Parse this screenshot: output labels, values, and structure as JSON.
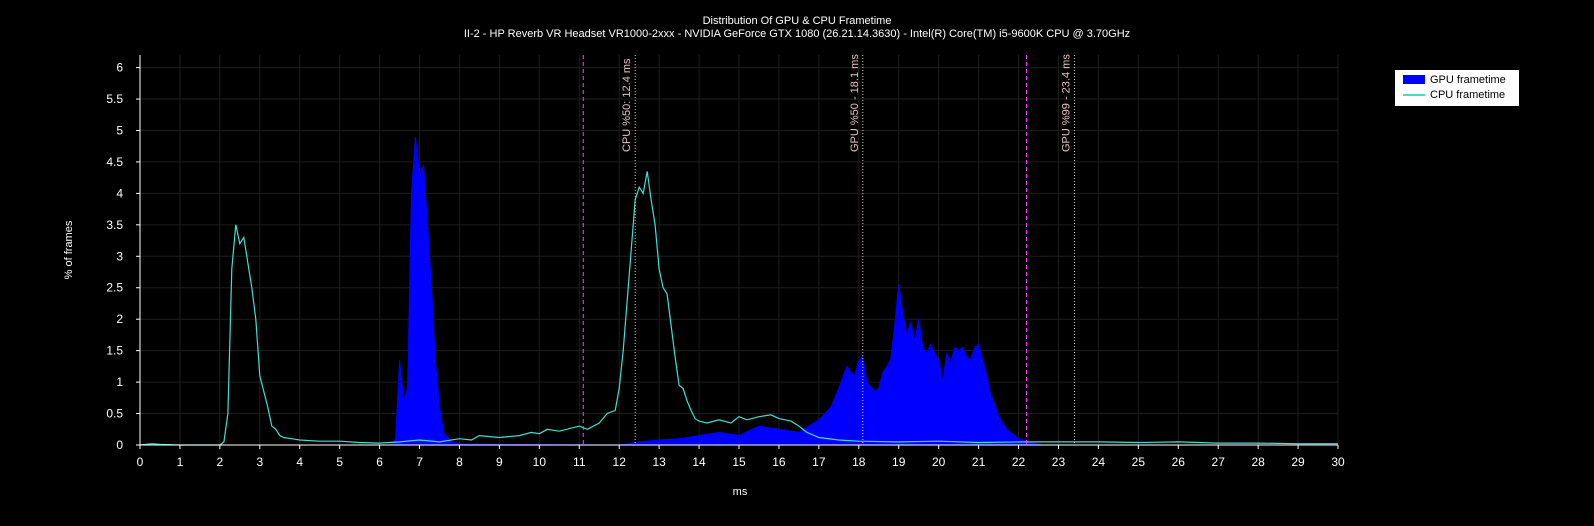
{
  "chart_data": {
    "type": "area",
    "title": "Distribution Of GPU & CPU Frametime",
    "subtitle": "II-2 - HP Reverb VR Headset VR1000-2xxx - NVIDIA GeForce GTX 1080 (26.21.14.3630) - Intel(R) Core(TM) i5-9600K CPU @ 3.70GHz",
    "xlabel": "ms",
    "ylabel": "% of frames",
    "xlim": [
      0,
      30
    ],
    "ylim": [
      0,
      6.2
    ],
    "xticks": [
      "0",
      "1",
      "2",
      "3",
      "4",
      "5",
      "6",
      "7",
      "8",
      "9",
      "10",
      "11",
      "12",
      "13",
      "14",
      "15",
      "16",
      "17",
      "18",
      "19",
      "20",
      "21",
      "22",
      "23",
      "24",
      "25",
      "26",
      "27",
      "28",
      "29",
      "30"
    ],
    "yticks": [
      "0",
      "0.5",
      "1",
      "1.5",
      "2",
      "2.5",
      "3",
      "3.5",
      "4",
      "4.5",
      "5",
      "5.5",
      "6"
    ],
    "grid": true,
    "legend_position": "top-right",
    "series": [
      {
        "name": "GPU frametime",
        "kind": "area",
        "color": "#0000ff",
        "points": [
          [
            0,
            0
          ],
          [
            6.3,
            0
          ],
          [
            6.4,
            0.1
          ],
          [
            6.5,
            1.35
          ],
          [
            6.6,
            0.7
          ],
          [
            6.7,
            0.9
          ],
          [
            6.8,
            4.0
          ],
          [
            6.9,
            4.9
          ],
          [
            7.0,
            4.3
          ],
          [
            7.1,
            4.45
          ],
          [
            7.2,
            3.5
          ],
          [
            7.3,
            2.5
          ],
          [
            7.4,
            1.3
          ],
          [
            7.5,
            0.6
          ],
          [
            7.6,
            0.2
          ],
          [
            7.8,
            0.05
          ],
          [
            8.0,
            0.02
          ],
          [
            9.0,
            0.01
          ],
          [
            12.0,
            0.0
          ],
          [
            12.5,
            0.05
          ],
          [
            13.0,
            0.08
          ],
          [
            13.5,
            0.1
          ],
          [
            14.0,
            0.15
          ],
          [
            14.5,
            0.2
          ],
          [
            15.0,
            0.15
          ],
          [
            15.5,
            0.3
          ],
          [
            16.0,
            0.25
          ],
          [
            16.5,
            0.2
          ],
          [
            17.0,
            0.4
          ],
          [
            17.3,
            0.6
          ],
          [
            17.5,
            0.9
          ],
          [
            17.7,
            1.25
          ],
          [
            17.8,
            1.15
          ],
          [
            17.9,
            1.1
          ],
          [
            18.0,
            1.35
          ],
          [
            18.1,
            1.4
          ],
          [
            18.2,
            1.0
          ],
          [
            18.4,
            0.85
          ],
          [
            18.5,
            0.9
          ],
          [
            18.6,
            1.15
          ],
          [
            18.7,
            1.25
          ],
          [
            18.8,
            1.35
          ],
          [
            18.9,
            1.9
          ],
          [
            19.0,
            2.55
          ],
          [
            19.1,
            2.1
          ],
          [
            19.2,
            1.75
          ],
          [
            19.3,
            1.95
          ],
          [
            19.4,
            1.65
          ],
          [
            19.5,
            2.0
          ],
          [
            19.6,
            1.55
          ],
          [
            19.7,
            1.45
          ],
          [
            19.8,
            1.6
          ],
          [
            19.9,
            1.45
          ],
          [
            20.0,
            1.35
          ],
          [
            20.1,
            1.0
          ],
          [
            20.2,
            1.45
          ],
          [
            20.3,
            1.3
          ],
          [
            20.4,
            1.55
          ],
          [
            20.5,
            1.5
          ],
          [
            20.6,
            1.55
          ],
          [
            20.7,
            1.4
          ],
          [
            20.8,
            1.35
          ],
          [
            20.9,
            1.55
          ],
          [
            21.0,
            1.6
          ],
          [
            21.1,
            1.35
          ],
          [
            21.2,
            1.1
          ],
          [
            21.3,
            0.8
          ],
          [
            21.4,
            0.65
          ],
          [
            21.5,
            0.45
          ],
          [
            21.7,
            0.25
          ],
          [
            22.0,
            0.1
          ],
          [
            22.3,
            0.04
          ],
          [
            22.6,
            0.0
          ],
          [
            30,
            0
          ]
        ]
      },
      {
        "name": "CPU frametime",
        "kind": "line",
        "color": "#40e0d0",
        "points": [
          [
            0,
            0
          ],
          [
            0.3,
            0.02
          ],
          [
            0.5,
            0.01
          ],
          [
            1.0,
            0.0
          ],
          [
            2.0,
            0.0
          ],
          [
            2.1,
            0.05
          ],
          [
            2.2,
            0.5
          ],
          [
            2.3,
            2.8
          ],
          [
            2.4,
            3.5
          ],
          [
            2.5,
            3.2
          ],
          [
            2.6,
            3.3
          ],
          [
            2.7,
            2.9
          ],
          [
            2.8,
            2.5
          ],
          [
            2.9,
            2.0
          ],
          [
            3.0,
            1.1
          ],
          [
            3.1,
            0.85
          ],
          [
            3.2,
            0.6
          ],
          [
            3.3,
            0.3
          ],
          [
            3.4,
            0.25
          ],
          [
            3.5,
            0.15
          ],
          [
            3.6,
            0.12
          ],
          [
            3.8,
            0.1
          ],
          [
            4.0,
            0.08
          ],
          [
            4.5,
            0.06
          ],
          [
            5.0,
            0.06
          ],
          [
            5.5,
            0.04
          ],
          [
            6.0,
            0.03
          ],
          [
            6.5,
            0.05
          ],
          [
            7.0,
            0.08
          ],
          [
            7.5,
            0.05
          ],
          [
            8.0,
            0.1
          ],
          [
            8.3,
            0.08
          ],
          [
            8.5,
            0.15
          ],
          [
            9.0,
            0.12
          ],
          [
            9.5,
            0.15
          ],
          [
            9.8,
            0.2
          ],
          [
            10.0,
            0.18
          ],
          [
            10.2,
            0.25
          ],
          [
            10.5,
            0.22
          ],
          [
            11.0,
            0.3
          ],
          [
            11.2,
            0.25
          ],
          [
            11.5,
            0.35
          ],
          [
            11.7,
            0.5
          ],
          [
            11.9,
            0.55
          ],
          [
            12.0,
            0.9
          ],
          [
            12.1,
            1.5
          ],
          [
            12.2,
            2.3
          ],
          [
            12.3,
            3.1
          ],
          [
            12.4,
            3.9
          ],
          [
            12.5,
            4.1
          ],
          [
            12.6,
            4.0
          ],
          [
            12.7,
            4.35
          ],
          [
            12.8,
            3.9
          ],
          [
            12.9,
            3.5
          ],
          [
            13.0,
            2.8
          ],
          [
            13.1,
            2.5
          ],
          [
            13.2,
            2.4
          ],
          [
            13.3,
            1.9
          ],
          [
            13.4,
            1.4
          ],
          [
            13.5,
            0.95
          ],
          [
            13.6,
            0.9
          ],
          [
            13.7,
            0.7
          ],
          [
            13.8,
            0.55
          ],
          [
            13.9,
            0.42
          ],
          [
            14.0,
            0.38
          ],
          [
            14.2,
            0.35
          ],
          [
            14.5,
            0.4
          ],
          [
            14.8,
            0.35
          ],
          [
            15.0,
            0.45
          ],
          [
            15.2,
            0.4
          ],
          [
            15.5,
            0.45
          ],
          [
            15.8,
            0.48
          ],
          [
            16.0,
            0.42
          ],
          [
            16.3,
            0.38
          ],
          [
            16.5,
            0.3
          ],
          [
            16.7,
            0.2
          ],
          [
            17.0,
            0.12
          ],
          [
            17.5,
            0.08
          ],
          [
            18.0,
            0.06
          ],
          [
            19.0,
            0.05
          ],
          [
            20.0,
            0.06
          ],
          [
            21.0,
            0.04
          ],
          [
            22.0,
            0.05
          ],
          [
            23.0,
            0.05
          ],
          [
            24.0,
            0.05
          ],
          [
            25.0,
            0.04
          ],
          [
            26.0,
            0.05
          ],
          [
            27.0,
            0.03
          ],
          [
            28.0,
            0.03
          ],
          [
            29.0,
            0.02
          ],
          [
            30.0,
            0.02
          ]
        ]
      }
    ],
    "annotations": [
      {
        "x": 11.1,
        "label": "",
        "color": "#ff3cff",
        "style": "dashed"
      },
      {
        "x": 12.4,
        "label": "CPU %50: 12.4 ms",
        "color": "#e8c0c0",
        "style": "dotted"
      },
      {
        "x": 18.1,
        "label": "GPU %50 - 18.1 ms",
        "color": "#e8c0c0",
        "style": "dotted"
      },
      {
        "x": 22.2,
        "label": "",
        "color": "#ff3cff",
        "style": "dashed"
      },
      {
        "x": 23.4,
        "label": "GPU %99 - 23.4 ms",
        "color": "#e8c0c0",
        "style": "dotted"
      }
    ]
  }
}
